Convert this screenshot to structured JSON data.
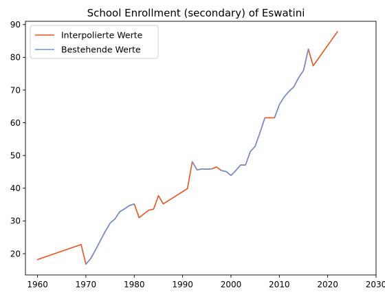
{
  "chart_data": {
    "type": "line",
    "title": "School Enrollment (secondary) of Eswatini",
    "xlabel": "",
    "ylabel": "",
    "xlim": [
      1957.5,
      2030
    ],
    "ylim": [
      13.5,
      91
    ],
    "xticks": [
      1960,
      1970,
      1980,
      1990,
      2000,
      2010,
      2020,
      2030
    ],
    "yticks": [
      20,
      30,
      40,
      50,
      60,
      70,
      80,
      90
    ],
    "grid": false,
    "legend_position": "top-left",
    "series": [
      {
        "name": "Interpolierte Werte",
        "color": "#f0501a",
        "points": [
          [
            1960,
            18.2
          ],
          [
            1969,
            22.8
          ],
          [
            1970,
            16.8
          ],
          [
            1971,
            18.5
          ],
          [
            1972,
            21.2
          ],
          [
            1973,
            24.0
          ],
          [
            1974,
            26.8
          ],
          [
            1975,
            29.3
          ],
          [
            1976,
            30.6
          ],
          [
            1977,
            32.8
          ],
          [
            1978,
            33.7
          ],
          [
            1979,
            34.7
          ],
          [
            1980,
            35.2
          ],
          [
            1981,
            31.0
          ],
          [
            1983,
            33.3
          ],
          [
            1984,
            33.6
          ],
          [
            1985,
            37.7
          ],
          [
            1986,
            35.2
          ],
          [
            1991,
            39.9
          ],
          [
            1992,
            48.1
          ],
          [
            1993,
            45.6
          ],
          [
            1994,
            45.9
          ],
          [
            1995,
            45.8
          ],
          [
            1996,
            45.9
          ],
          [
            1997,
            46.5
          ],
          [
            1998,
            45.4
          ],
          [
            1999,
            45.1
          ],
          [
            2000,
            43.9
          ],
          [
            2001,
            45.4
          ],
          [
            2002,
            47.1
          ],
          [
            2003,
            47.1
          ],
          [
            2004,
            51.2
          ],
          [
            2005,
            52.8
          ],
          [
            2006,
            57.0
          ],
          [
            2007,
            61.5
          ],
          [
            2008,
            61.5
          ],
          [
            2009,
            61.5
          ],
          [
            2010,
            65.5
          ],
          [
            2011,
            67.9
          ],
          [
            2012,
            69.6
          ],
          [
            2013,
            71.0
          ],
          [
            2014,
            73.8
          ],
          [
            2015,
            76.0
          ],
          [
            2016,
            82.5
          ],
          [
            2017,
            77.4
          ],
          [
            2022,
            87.8
          ]
        ]
      },
      {
        "name": "Bestehende Werte",
        "color": "#6b8fd6",
        "segments": [
          [
            [
              1970,
              16.8
            ],
            [
              1971,
              18.5
            ],
            [
              1972,
              21.2
            ],
            [
              1973,
              24.0
            ],
            [
              1974,
              26.8
            ],
            [
              1975,
              29.3
            ],
            [
              1976,
              30.6
            ],
            [
              1977,
              32.8
            ],
            [
              1978,
              33.7
            ],
            [
              1979,
              34.7
            ],
            [
              1980,
              35.2
            ]
          ],
          [
            [
              1992,
              48.1
            ],
            [
              1993,
              45.6
            ],
            [
              1994,
              45.9
            ],
            [
              1995,
              45.8
            ],
            [
              1996,
              45.9
            ]
          ],
          [
            [
              1998,
              45.4
            ],
            [
              1999,
              45.1
            ],
            [
              2000,
              43.9
            ],
            [
              2001,
              45.4
            ],
            [
              2002,
              47.1
            ],
            [
              2003,
              47.1
            ],
            [
              2004,
              51.2
            ],
            [
              2005,
              52.8
            ],
            [
              2006,
              57.0
            ],
            [
              2007,
              61.5
            ]
          ],
          [
            [
              2009,
              61.5
            ],
            [
              2010,
              65.5
            ],
            [
              2011,
              67.9
            ],
            [
              2012,
              69.6
            ],
            [
              2013,
              71.0
            ],
            [
              2014,
              73.8
            ],
            [
              2015,
              76.0
            ],
            [
              2016,
              82.5
            ]
          ]
        ]
      }
    ]
  }
}
